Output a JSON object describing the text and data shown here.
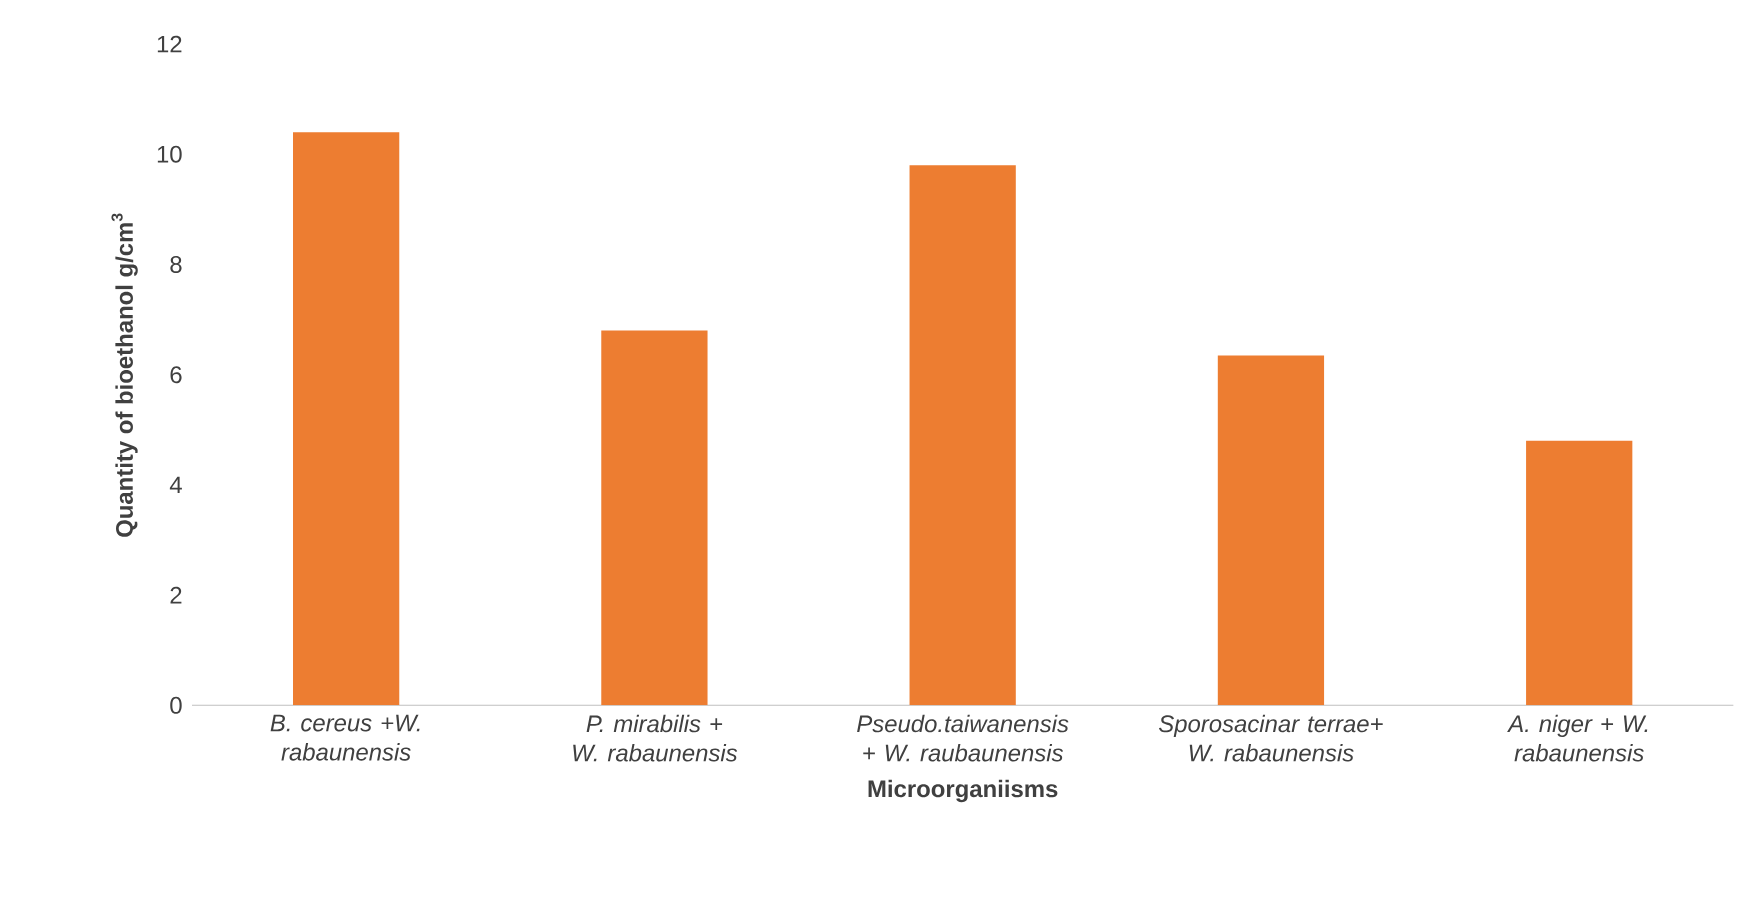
{
  "chart_data": {
    "type": "bar",
    "categories": [
      "B. cereus +W. rabaunensis",
      "P. mirabilis + W. rabaunensis",
      "Pseudo.taiwanensis + W. raubaunensis",
      "Sporosacinar terrae+ W. rabaunensis",
      "A. niger + W. rabaunensis"
    ],
    "values": [
      10.4,
      6.8,
      9.8,
      6.35,
      4.8
    ],
    "color": "#ed7d31",
    "xlabel": "Microorganiisms",
    "ylabel": "Quantity of bioethanol g/cm$^{3}$",
    "ylim": [
      0,
      12
    ],
    "yticks": [
      0,
      2,
      4,
      6,
      8,
      10,
      12
    ],
    "grid": false
  }
}
